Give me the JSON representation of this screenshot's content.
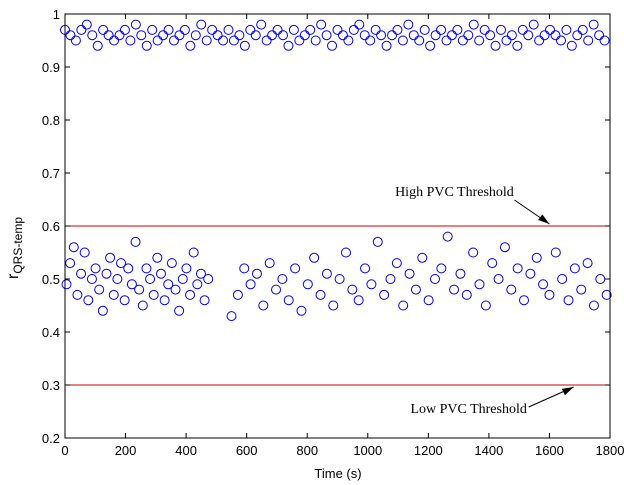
{
  "chart_data": {
    "type": "scatter",
    "xlabel": "Time (s)",
    "ylabel": "r",
    "ylabel_sub": "QRS-temp",
    "xlim": [
      0,
      1800
    ],
    "ylim": [
      0.2,
      1
    ],
    "xticks": [
      0,
      200,
      400,
      600,
      800,
      1000,
      1200,
      1400,
      1600,
      1800
    ],
    "yticks": [
      0.2,
      0.3,
      0.4,
      0.5,
      0.6,
      0.7,
      0.8,
      0.9,
      1
    ],
    "thresholds": [
      {
        "value": 0.6,
        "color": "#cc0000"
      },
      {
        "value": 0.3,
        "color": "#cc0000"
      }
    ],
    "annotations": [
      {
        "text": "High PVC Threshold",
        "x": 1600,
        "y": 0.6
      },
      {
        "text": "Low PVC Threshold",
        "x": 1680,
        "y": 0.3
      }
    ],
    "series": [
      {
        "color": "#0000ff",
        "x": [
          0,
          18,
          36,
          54,
          72,
          90,
          108,
          126,
          144,
          162,
          180,
          198,
          216,
          234,
          252,
          270,
          288,
          306,
          324,
          342,
          360,
          378,
          396,
          414,
          432,
          450,
          468,
          486,
          504,
          522,
          540,
          558,
          576,
          594,
          612,
          630,
          648,
          666,
          684,
          702,
          720,
          738,
          756,
          774,
          792,
          810,
          828,
          846,
          864,
          882,
          900,
          918,
          936,
          954,
          972,
          990,
          1008,
          1026,
          1044,
          1062,
          1080,
          1098,
          1116,
          1134,
          1152,
          1170,
          1188,
          1206,
          1224,
          1242,
          1260,
          1278,
          1296,
          1314,
          1332,
          1350,
          1368,
          1386,
          1404,
          1422,
          1440,
          1458,
          1476,
          1494,
          1512,
          1530,
          1548,
          1566,
          1584,
          1602,
          1620,
          1638,
          1656,
          1674,
          1692,
          1710,
          1728,
          1746,
          1764,
          1782
        ],
        "values": [
          0.97,
          0.96,
          0.95,
          0.97,
          0.98,
          0.96,
          0.94,
          0.97,
          0.96,
          0.95,
          0.96,
          0.97,
          0.95,
          0.98,
          0.96,
          0.94,
          0.97,
          0.95,
          0.96,
          0.97,
          0.95,
          0.96,
          0.97,
          0.94,
          0.96,
          0.98,
          0.95,
          0.97,
          0.96,
          0.95,
          0.97,
          0.95,
          0.96,
          0.94,
          0.97,
          0.96,
          0.98,
          0.95,
          0.96,
          0.97,
          0.96,
          0.94,
          0.97,
          0.95,
          0.96,
          0.97,
          0.95,
          0.98,
          0.96,
          0.94,
          0.97,
          0.96,
          0.95,
          0.97,
          0.98,
          0.96,
          0.95,
          0.97,
          0.96,
          0.94,
          0.96,
          0.97,
          0.95,
          0.98,
          0.96,
          0.95,
          0.97,
          0.94,
          0.96,
          0.97,
          0.95,
          0.96,
          0.97,
          0.95,
          0.96,
          0.98,
          0.95,
          0.97,
          0.96,
          0.94,
          0.97,
          0.95,
          0.96,
          0.94,
          0.97,
          0.96,
          0.98,
          0.95,
          0.96,
          0.97,
          0.96,
          0.95,
          0.97,
          0.94,
          0.96,
          0.97,
          0.95,
          0.98,
          0.96,
          0.95
        ]
      },
      {
        "color": "#0000ff",
        "x": [
          5,
          17,
          29,
          41,
          53,
          65,
          77,
          89,
          101,
          113,
          125,
          137,
          149,
          161,
          173,
          185,
          197,
          209,
          221,
          233,
          245,
          257,
          269,
          281,
          293,
          305,
          317,
          329,
          341,
          353,
          365,
          377,
          389,
          401,
          413,
          425,
          437,
          449,
          461,
          473,
          550,
          571,
          592,
          613,
          634,
          655,
          676,
          697,
          718,
          739,
          760,
          781,
          802,
          823,
          844,
          865,
          886,
          907,
          928,
          949,
          970,
          991,
          1012,
          1033,
          1054,
          1075,
          1096,
          1117,
          1138,
          1159,
          1180,
          1201,
          1222,
          1243,
          1264,
          1285,
          1306,
          1327,
          1348,
          1369,
          1390,
          1411,
          1432,
          1453,
          1474,
          1495,
          1516,
          1537,
          1558,
          1579,
          1600,
          1621,
          1642,
          1663,
          1684,
          1705,
          1726,
          1747,
          1768,
          1789
        ],
        "values": [
          0.49,
          0.53,
          0.56,
          0.47,
          0.51,
          0.55,
          0.46,
          0.5,
          0.52,
          0.48,
          0.44,
          0.51,
          0.54,
          0.47,
          0.5,
          0.53,
          0.46,
          0.52,
          0.49,
          0.57,
          0.48,
          0.45,
          0.52,
          0.5,
          0.47,
          0.54,
          0.51,
          0.46,
          0.49,
          0.53,
          0.48,
          0.44,
          0.5,
          0.52,
          0.47,
          0.55,
          0.49,
          0.51,
          0.46,
          0.5,
          0.43,
          0.47,
          0.52,
          0.49,
          0.51,
          0.45,
          0.53,
          0.48,
          0.5,
          0.46,
          0.52,
          0.44,
          0.49,
          0.54,
          0.47,
          0.51,
          0.45,
          0.5,
          0.55,
          0.48,
          0.46,
          0.52,
          0.49,
          0.57,
          0.47,
          0.5,
          0.53,
          0.45,
          0.51,
          0.48,
          0.54,
          0.46,
          0.5,
          0.52,
          0.58,
          0.48,
          0.51,
          0.47,
          0.55,
          0.49,
          0.45,
          0.53,
          0.5,
          0.56,
          0.48,
          0.52,
          0.46,
          0.51,
          0.54,
          0.49,
          0.47,
          0.55,
          0.5,
          0.46,
          0.52,
          0.48,
          0.53,
          0.45,
          0.5,
          0.47
        ]
      }
    ]
  }
}
